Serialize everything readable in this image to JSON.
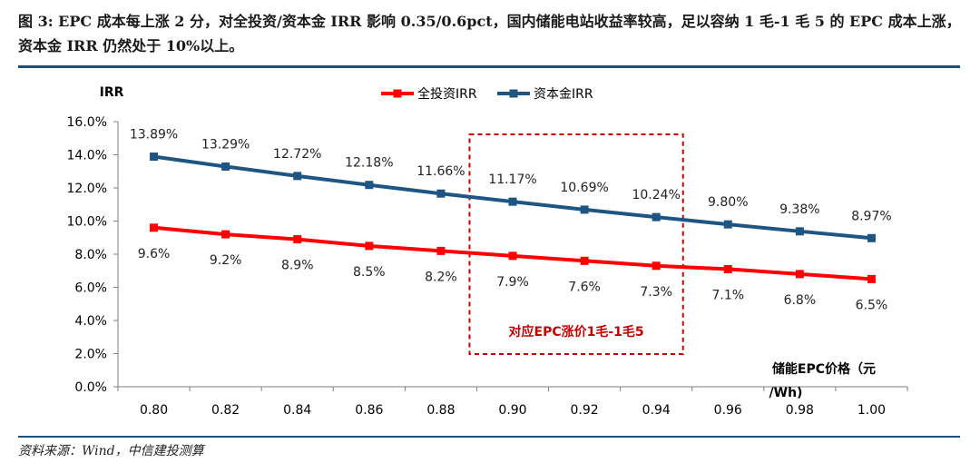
{
  "figure": {
    "title": "图 3: EPC 成本每上涨 2 分，对全投资/资本金 IRR 影响 0.35/0.6pct，国内储能电站收益率较高，足以容纳 1 毛-1 毛 5 的 EPC 成本上涨，资本金 IRR 仍然处于 10%以上。",
    "source": "资料来源：Wind，中信建投测算"
  },
  "chart_data": {
    "type": "line",
    "ylabel": "IRR",
    "xlabel_line1": "储能EPC价格（元",
    "xlabel_line2": "/Wh)",
    "x": [
      "0.80",
      "0.82",
      "0.84",
      "0.86",
      "0.88",
      "0.90",
      "0.92",
      "0.94",
      "0.96",
      "0.98",
      "1.00"
    ],
    "ylim": [
      0,
      16
    ],
    "yticks": [
      "0.0%",
      "2.0%",
      "4.0%",
      "6.0%",
      "8.0%",
      "10.0%",
      "12.0%",
      "14.0%",
      "16.0%"
    ],
    "series": [
      {
        "name": "全投资IRR",
        "color": "#ff0000",
        "values": [
          9.6,
          9.2,
          8.9,
          8.5,
          8.2,
          7.9,
          7.6,
          7.3,
          7.1,
          6.8,
          6.5
        ],
        "labels": [
          "9.6%",
          "9.2%",
          "8.9%",
          "8.5%",
          "8.2%",
          "7.9%",
          "7.6%",
          "7.3%",
          "7.1%",
          "6.8%",
          "6.5%"
        ]
      },
      {
        "name": "资本金IRR",
        "color": "#1f5582",
        "values": [
          13.89,
          13.29,
          12.72,
          12.18,
          11.66,
          11.17,
          10.69,
          10.24,
          9.8,
          9.38,
          8.97
        ],
        "labels": [
          "13.89%",
          "13.29%",
          "12.72%",
          "12.18%",
          "11.66%",
          "11.17%",
          "10.69%",
          "10.24%",
          "9.80%",
          "9.38%",
          "8.97%"
        ]
      }
    ],
    "annotation": {
      "text": "对应EPC涨价1毛-1毛5",
      "color": "#c00000",
      "x_from": "0.90",
      "x_to": "0.96"
    },
    "legend": "top-center",
    "grid": false
  }
}
